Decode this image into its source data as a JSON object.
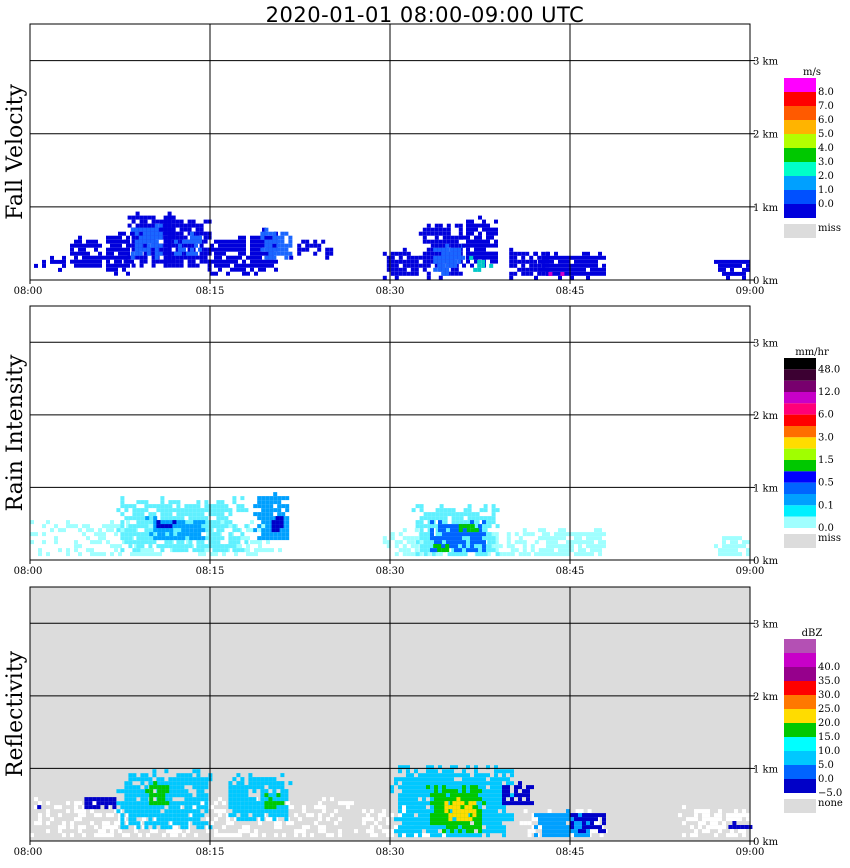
{
  "title": "2020-01-01   08:00-09:00 UTC",
  "chart_data": [
    {
      "type": "heatmap",
      "ylabel": "Fall Velocity",
      "x_ticks": [
        "08:00",
        "08:15",
        "08:30",
        "08:45",
        "09:00"
      ],
      "y_ticks": [
        "0 km",
        "1 km",
        "2 km",
        "3 km"
      ],
      "xlim": [
        "08:00",
        "09:00"
      ],
      "ylim_km": [
        0,
        3.5
      ],
      "grid": true,
      "background": "#ffffff",
      "colorbar": {
        "unit": "m/s",
        "levels": [
          {
            "label": "8.0",
            "color": "#ff00ff"
          },
          {
            "label": "7.0",
            "color": "#ff0000"
          },
          {
            "label": "6.0",
            "color": "#ff5a00"
          },
          {
            "label": "5.0",
            "color": "#ffb400"
          },
          {
            "label": "4.0",
            "color": "#b4ff00"
          },
          {
            "label": "3.0",
            "color": "#00c800"
          },
          {
            "label": "2.0",
            "color": "#00ffc8"
          },
          {
            "label": "1.0",
            "color": "#00a0ff"
          },
          {
            "label": "0.0",
            "color": "#0050ff"
          },
          {
            "label": "",
            "color": "#0000dc"
          }
        ],
        "missing": {
          "label": "miss",
          "color": "#dcdcdc"
        }
      },
      "cells": [
        [
          0,
          0.05,
          0.15,
          0.3,
          0.65,
          "#0000dc"
        ],
        [
          0.05,
          0.1,
          0.15,
          0.55,
          0.7,
          "#0000dc"
        ],
        [
          0.1,
          0.14,
          0.1,
          0.6,
          0.85,
          "#0000dc"
        ],
        [
          0.13,
          0.2,
          0.2,
          0.85,
          0.9,
          "#0000dc"
        ],
        [
          0.14,
          0.18,
          0.3,
          0.7,
          0.85,
          "#1a66ff"
        ],
        [
          0.18,
          0.25,
          0.15,
          0.8,
          0.85,
          "#0000dc"
        ],
        [
          0.2,
          0.24,
          0.3,
          0.6,
          0.75,
          "#1a66ff"
        ],
        [
          0.25,
          0.3,
          0.1,
          0.55,
          0.75,
          "#0000dc"
        ],
        [
          0.3,
          0.34,
          0.1,
          0.65,
          0.9,
          "#0000dc"
        ],
        [
          0.32,
          0.36,
          0.25,
          0.65,
          0.8,
          "#1a66ff"
        ],
        [
          0.36,
          0.42,
          0.3,
          0.55,
          0.5,
          "#0000dc"
        ],
        [
          0.41,
          0.42,
          0.95,
          0.1,
          1.0,
          "#0000dc"
        ],
        [
          0.49,
          0.54,
          0.05,
          0.4,
          0.85,
          "#0000dc"
        ],
        [
          0.54,
          0.6,
          0.05,
          0.7,
          0.9,
          "#0000dc"
        ],
        [
          0.56,
          0.6,
          0.1,
          0.45,
          0.85,
          "#1a66ff"
        ],
        [
          0.6,
          0.65,
          0.2,
          0.8,
          0.8,
          "#0000dc"
        ],
        [
          0.61,
          0.64,
          0.1,
          0.3,
          0.65,
          "#00c8c8"
        ],
        [
          0.62,
          0.63,
          0.1,
          0.15,
          0.7,
          "#00c800"
        ],
        [
          0.66,
          0.72,
          0.05,
          0.4,
          0.75,
          "#0000dc"
        ],
        [
          0.7,
          0.8,
          0.05,
          0.35,
          0.9,
          "#0000dc"
        ],
        [
          0.72,
          0.76,
          0.05,
          0.1,
          0.8,
          "#cc00cc"
        ],
        [
          0.95,
          1.0,
          0.05,
          0.3,
          0.8,
          "#0000dc"
        ]
      ]
    },
    {
      "type": "heatmap",
      "ylabel": "Rain Intensity",
      "x_ticks": [
        "08:00",
        "08:15",
        "08:30",
        "08:45",
        "09:00"
      ],
      "y_ticks": [
        "0 km",
        "1 km",
        "2 km",
        "3 km"
      ],
      "xlim": [
        "08:00",
        "09:00"
      ],
      "ylim_km": [
        0,
        3.5
      ],
      "grid": true,
      "background": "#ffffff",
      "colorbar": {
        "unit": "mm/hr",
        "levels": [
          {
            "label": "48.0",
            "color": "#000000"
          },
          {
            "label": "",
            "color": "#3c0032"
          },
          {
            "label": "12.0",
            "color": "#78006e"
          },
          {
            "label": "",
            "color": "#c800c8"
          },
          {
            "label": "6.0",
            "color": "#ff0078"
          },
          {
            "label": "",
            "color": "#ff0000"
          },
          {
            "label": "3.0",
            "color": "#ff6e00"
          },
          {
            "label": "",
            "color": "#ffdc00"
          },
          {
            "label": "1.5",
            "color": "#a0ff00"
          },
          {
            "label": "",
            "color": "#00c800"
          },
          {
            "label": "0.5",
            "color": "#0000ff"
          },
          {
            "label": "",
            "color": "#0064ff"
          },
          {
            "label": "0.1",
            "color": "#00a0ff"
          },
          {
            "label": "",
            "color": "#00f0ff"
          },
          {
            "label": "0.0",
            "color": "#a0ffff"
          }
        ],
        "missing": {
          "label": "miss",
          "color": "#dcdcdc"
        }
      },
      "cells": [
        [
          0,
          0.35,
          0.05,
          0.5,
          0.45,
          "#a0ffff"
        ],
        [
          0.12,
          0.3,
          0.1,
          0.8,
          0.85,
          "#60f0ff"
        ],
        [
          0.16,
          0.24,
          0.25,
          0.55,
          0.75,
          "#00a0ff"
        ],
        [
          0.17,
          0.2,
          0.4,
          0.5,
          0.8,
          "#0000c8"
        ],
        [
          0.31,
          0.36,
          0.25,
          0.85,
          0.9,
          "#00a0ff"
        ],
        [
          0.33,
          0.35,
          0.35,
          0.6,
          0.8,
          "#0000c8"
        ],
        [
          0.34,
          0.35,
          0.45,
          0.5,
          0.7,
          "#00c800"
        ],
        [
          0.49,
          0.71,
          0.05,
          0.4,
          0.6,
          "#a0ffff"
        ],
        [
          0.53,
          0.65,
          0.05,
          0.7,
          0.9,
          "#60f0ff"
        ],
        [
          0.55,
          0.63,
          0.1,
          0.5,
          0.8,
          "#0064ff"
        ],
        [
          0.56,
          0.58,
          0.1,
          0.25,
          0.6,
          "#00c800"
        ],
        [
          0.59,
          0.62,
          0.35,
          0.5,
          0.8,
          "#00c800"
        ],
        [
          0.7,
          0.8,
          0.05,
          0.4,
          0.75,
          "#a0ffff"
        ],
        [
          0.95,
          1.0,
          0.05,
          0.35,
          0.7,
          "#a0ffff"
        ]
      ]
    },
    {
      "type": "heatmap",
      "ylabel": "Reflectivity",
      "x_ticks": [
        "08:00",
        "08:15",
        "08:30",
        "08:45",
        "09:00"
      ],
      "y_ticks": [
        "0 km",
        "1 km",
        "2 km",
        "3 km"
      ],
      "xlim": [
        "08:00",
        "09:00"
      ],
      "ylim_km": [
        0,
        3.5
      ],
      "grid": true,
      "background": "#dcdcdc",
      "colorbar": {
        "unit": "dBZ",
        "levels": [
          {
            "label": "",
            "color": "#b450b4"
          },
          {
            "label": "40.0",
            "color": "#c800c8"
          },
          {
            "label": "35.0",
            "color": "#96008c"
          },
          {
            "label": "30.0",
            "color": "#ff0000"
          },
          {
            "label": "25.0",
            "color": "#ff7800"
          },
          {
            "label": "20.0",
            "color": "#ffdc00"
          },
          {
            "label": "15.0",
            "color": "#00c800"
          },
          {
            "label": "10.0",
            "color": "#00ffff"
          },
          {
            "label": "5.0",
            "color": "#00c8ff"
          },
          {
            "label": "0.0",
            "color": "#0064ff"
          },
          {
            "label": "−5.0",
            "color": "#0000c8"
          }
        ],
        "missing": {
          "label": "none",
          "color": "#dcdcdc"
        }
      },
      "cells": [
        [
          0,
          0.45,
          0.05,
          0.55,
          0.4,
          "#ffffff"
        ],
        [
          0.01,
          0.03,
          0.4,
          0.45,
          0.7,
          "#0000c8"
        ],
        [
          0.07,
          0.12,
          0.4,
          0.6,
          0.8,
          "#0000c8"
        ],
        [
          0.12,
          0.25,
          0.15,
          0.9,
          0.85,
          "#00c8ff"
        ],
        [
          0.16,
          0.19,
          0.45,
          0.75,
          0.85,
          "#00c800"
        ],
        [
          0.27,
          0.36,
          0.25,
          0.85,
          0.85,
          "#00c8ff"
        ],
        [
          0.32,
          0.35,
          0.4,
          0.6,
          0.8,
          "#00c800"
        ],
        [
          0.41,
          0.42,
          0.95,
          0.1,
          1.0,
          "#0000c8"
        ],
        [
          0.45,
          0.6,
          0.05,
          0.45,
          0.4,
          "#ffffff"
        ],
        [
          0.5,
          0.67,
          0.05,
          0.95,
          0.95,
          "#00c8ff"
        ],
        [
          0.55,
          0.63,
          0.1,
          0.7,
          0.85,
          "#00c800"
        ],
        [
          0.57,
          0.62,
          0.25,
          0.55,
          0.8,
          "#ffdc00"
        ],
        [
          0.65,
          0.7,
          0.45,
          0.75,
          0.8,
          "#0000c8"
        ],
        [
          0.68,
          0.8,
          0.05,
          0.4,
          0.5,
          "#ffffff"
        ],
        [
          0.7,
          0.78,
          0.05,
          0.4,
          0.9,
          "#00a0ff"
        ],
        [
          0.75,
          0.8,
          0.1,
          0.4,
          0.7,
          "#0000c8"
        ],
        [
          0.9,
          1.0,
          0.05,
          0.45,
          0.45,
          "#ffffff"
        ],
        [
          0.97,
          1.0,
          0.15,
          0.25,
          0.8,
          "#0000c8"
        ]
      ]
    }
  ]
}
